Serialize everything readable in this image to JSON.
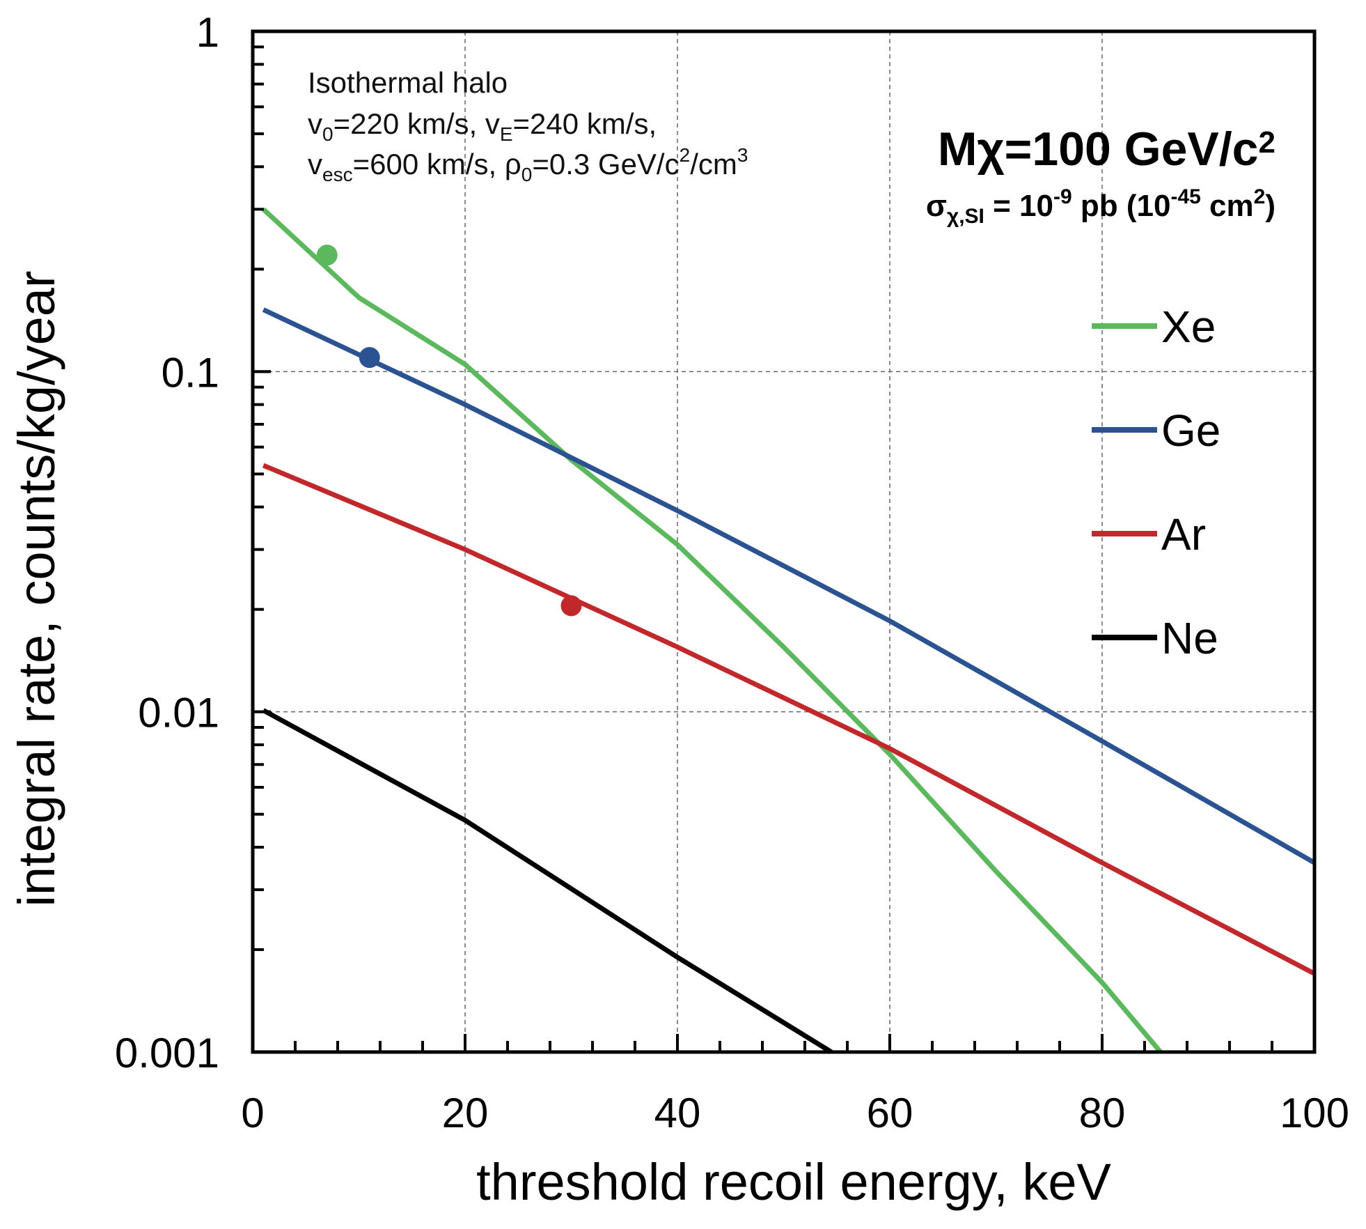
{
  "chart_data": {
    "type": "line",
    "yscale": "log",
    "xlabel": "threshold recoil energy, keV",
    "ylabel": "integral rate, counts/kg/year",
    "xlim": [
      0,
      100
    ],
    "ylim": [
      0.001,
      1
    ],
    "xticks": [
      "0",
      "20",
      "40",
      "60",
      "80",
      "100"
    ],
    "xtick_values": [
      0,
      20,
      40,
      60,
      80,
      100
    ],
    "yticks": [
      "0.001",
      "0.01",
      "0.1",
      "1"
    ],
    "ytick_values": [
      0.001,
      0.01,
      0.1,
      1
    ],
    "grid": true,
    "legend_position": "right",
    "annotation": {
      "line1": "Isothermal halo",
      "line2": [
        {
          "t": "v",
          "s": "n"
        },
        {
          "t": "0",
          "s": "sub"
        },
        {
          "t": "=220 km/s, v",
          "s": "n"
        },
        {
          "t": "E",
          "s": "sub"
        },
        {
          "t": "=240 km/s,",
          "s": "n"
        }
      ],
      "line3": [
        {
          "t": "v",
          "s": "n"
        },
        {
          "t": "esc",
          "s": "sub"
        },
        {
          "t": "=600 km/s, ρ",
          "s": "n"
        },
        {
          "t": "0",
          "s": "sub"
        },
        {
          "t": "=0.3 GeV/c",
          "s": "n"
        },
        {
          "t": "2",
          "s": "sup"
        },
        {
          "t": "/cm",
          "s": "n"
        },
        {
          "t": "3",
          "s": "sup"
        }
      ]
    },
    "mass_label": [
      {
        "t": "Mχ=100 GeV/c",
        "s": "n"
      },
      {
        "t": "2",
        "s": "sup"
      }
    ],
    "sigma_label": [
      {
        "t": "σ",
        "s": "n"
      },
      {
        "t": "χ,SI",
        "s": "sub"
      },
      {
        "t": " = 10",
        "s": "n"
      },
      {
        "t": "-9",
        "s": "sup"
      },
      {
        "t": " pb (10",
        "s": "n"
      },
      {
        "t": "-45",
        "s": "sup"
      },
      {
        "t": " cm",
        "s": "n"
      },
      {
        "t": "2",
        "s": "sup"
      },
      {
        "t": ")",
        "s": "n"
      }
    ],
    "series": [
      {
        "name": "Xe",
        "color": "#5cb85c",
        "x": [
          1,
          10,
          20,
          30,
          40,
          50,
          60,
          70,
          80,
          85.5
        ],
        "y": [
          0.3,
          0.165,
          0.105,
          0.055,
          0.031,
          0.0155,
          0.0075,
          0.0034,
          0.0016,
          0.001
        ],
        "marker": {
          "x": 7,
          "y": 0.22
        }
      },
      {
        "name": "Ge",
        "color": "#2c5391",
        "x": [
          1,
          20,
          40,
          60,
          80,
          100
        ],
        "y": [
          0.152,
          0.08,
          0.039,
          0.0185,
          0.0082,
          0.0036
        ],
        "marker": {
          "x": 11,
          "y": 0.11
        }
      },
      {
        "name": "Ar",
        "color": "#c0282b",
        "x": [
          1,
          20,
          40,
          60,
          80,
          100
        ],
        "y": [
          0.053,
          0.03,
          0.0155,
          0.0078,
          0.0036,
          0.0017
        ],
        "marker": {
          "x": 30,
          "y": 0.0205
        }
      },
      {
        "name": "Ne",
        "color": "#000000",
        "x": [
          1,
          20,
          40,
          54.5
        ],
        "y": [
          0.0101,
          0.0048,
          0.0019,
          0.001
        ],
        "marker": null
      }
    ]
  }
}
